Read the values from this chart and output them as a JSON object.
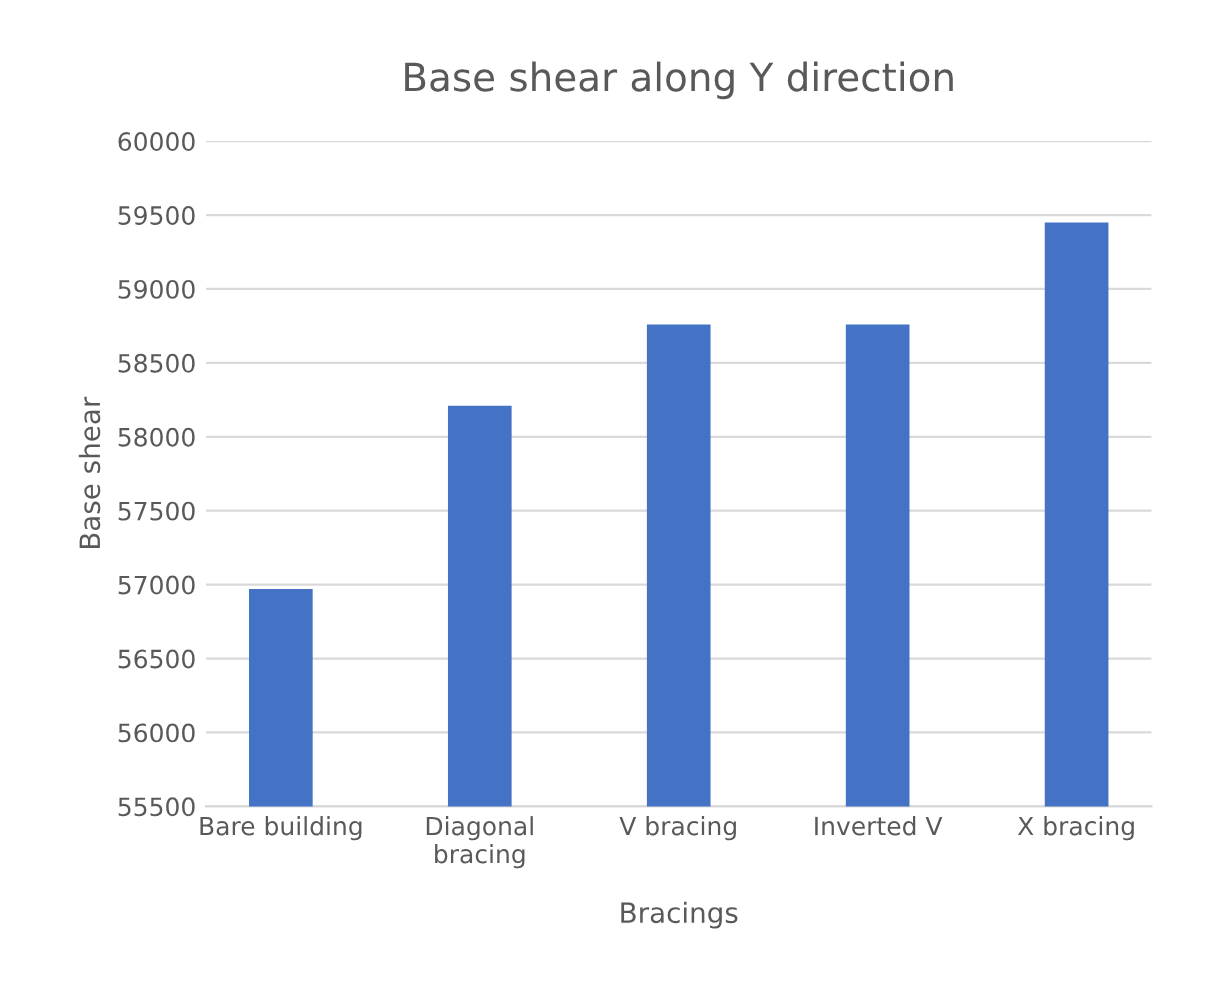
{
  "chart_data": {
    "type": "bar",
    "title": "Base shear along Y direction",
    "xlabel": "Bracings",
    "ylabel": "Base shear",
    "categories": [
      "Bare building",
      "Diagonal\nbracing",
      "V bracing",
      "Inverted V",
      "X bracing"
    ],
    "values": [
      56970,
      58210,
      58760,
      58760,
      59450
    ],
    "color": "#4472c4",
    "ylim": [
      55500,
      60000
    ],
    "yticks": [
      55500,
      56000,
      56500,
      57000,
      57500,
      58000,
      58500,
      59000,
      59500,
      60000
    ],
    "grid": "y"
  }
}
